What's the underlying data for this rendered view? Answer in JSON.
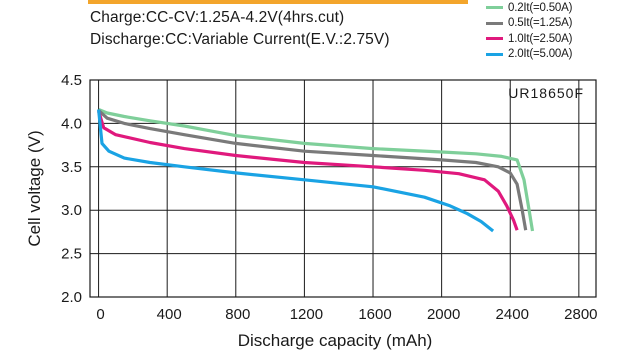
{
  "conditions": {
    "charge": "Charge:CC-CV:1.25A-4.2V(4hrs.cut)",
    "discharge": "Discharge:CC:Variable Current(E.V.:2.75V)"
  },
  "colors": {
    "header_strip": "#f3a52b"
  },
  "chart_data": {
    "type": "line",
    "model_label": "UR18650F",
    "xlabel": "Discharge capacity (mAh)",
    "ylabel": "Cell voltage (V)",
    "xlim": [
      -50,
      2900
    ],
    "ylim": [
      2.0,
      4.5
    ],
    "xticks": [
      0,
      400,
      800,
      1200,
      1600,
      2000,
      2400,
      2800
    ],
    "yticks": [
      "2.0",
      "2.5",
      "3.0",
      "3.5",
      "4.0",
      "4.5"
    ],
    "grid": true,
    "legend_position": "top-right",
    "series": [
      {
        "name": "0.2It(=0.50A)",
        "color": "#7fcf9a",
        "x": [
          0,
          50,
          150,
          300,
          500,
          800,
          1200,
          1600,
          2000,
          2200,
          2350,
          2440,
          2480,
          2510,
          2530
        ],
        "y": [
          4.16,
          4.12,
          4.08,
          4.03,
          3.97,
          3.86,
          3.77,
          3.71,
          3.67,
          3.65,
          3.62,
          3.58,
          3.35,
          3.0,
          2.76
        ]
      },
      {
        "name": "0.5It(=1.25A)",
        "color": "#7a7a7a",
        "x": [
          0,
          50,
          150,
          300,
          500,
          800,
          1200,
          1600,
          2000,
          2200,
          2330,
          2400,
          2440,
          2470,
          2490
        ],
        "y": [
          4.15,
          4.06,
          4.0,
          3.94,
          3.87,
          3.77,
          3.68,
          3.63,
          3.58,
          3.55,
          3.5,
          3.43,
          3.3,
          3.0,
          2.77
        ]
      },
      {
        "name": "1.0It(=2.50A)",
        "color": "#e0197d",
        "x": [
          0,
          30,
          100,
          300,
          500,
          800,
          1200,
          1600,
          1900,
          2100,
          2250,
          2330,
          2380,
          2420,
          2440
        ],
        "y": [
          4.14,
          3.95,
          3.87,
          3.78,
          3.71,
          3.63,
          3.55,
          3.5,
          3.46,
          3.42,
          3.35,
          3.22,
          3.05,
          2.88,
          2.77
        ]
      },
      {
        "name": "2.0It(=5.00A)",
        "color": "#1aa3e4",
        "x": [
          0,
          20,
          60,
          150,
          300,
          500,
          800,
          1200,
          1600,
          1900,
          2050,
          2150,
          2230,
          2300
        ],
        "y": [
          4.16,
          3.77,
          3.68,
          3.6,
          3.55,
          3.5,
          3.43,
          3.35,
          3.27,
          3.15,
          3.05,
          2.96,
          2.87,
          2.76
        ]
      }
    ]
  }
}
